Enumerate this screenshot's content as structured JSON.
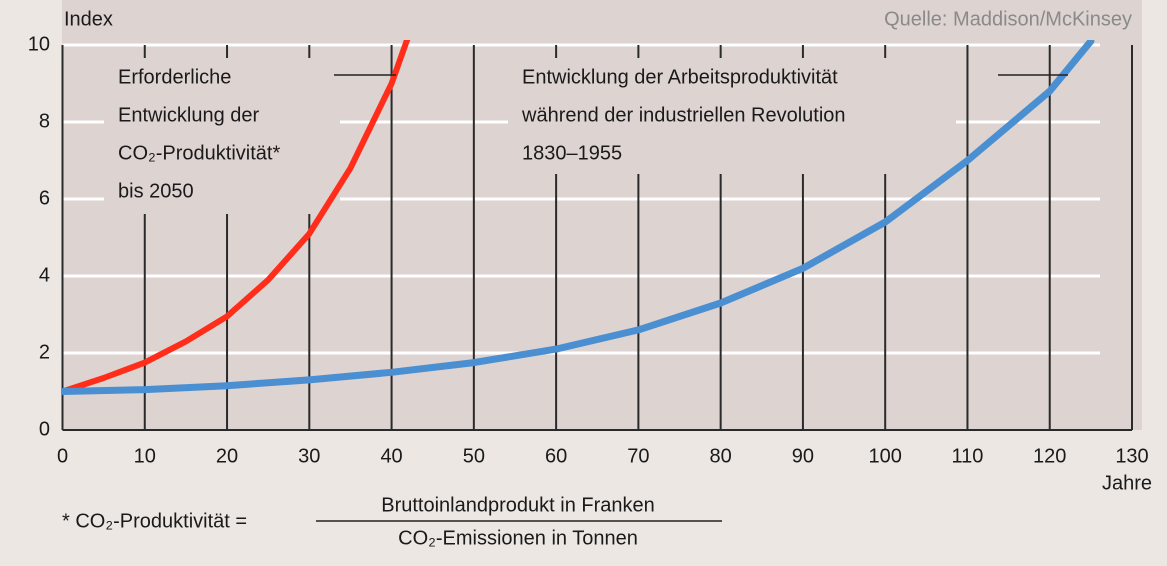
{
  "chart_data": {
    "type": "line",
    "y_label": "Index",
    "x_label": "Jahre",
    "source": "Quelle: Maddison/McKinsey",
    "xlim": [
      0,
      130
    ],
    "ylim": [
      0,
      10
    ],
    "xticks": [
      0,
      10,
      20,
      30,
      40,
      50,
      60,
      70,
      80,
      90,
      100,
      110,
      120,
      130
    ],
    "yticks": [
      0,
      2,
      4,
      6,
      8,
      10
    ],
    "grid": true,
    "series": [
      {
        "color": "#ff2d1a",
        "x": [
          0,
          5,
          10,
          15,
          20,
          25,
          30,
          35,
          40,
          42
        ],
        "values": [
          1,
          1.35,
          1.75,
          2.3,
          2.95,
          3.9,
          5.1,
          6.8,
          9.0,
          10.2
        ]
      },
      {
        "color": "#4a8fd2",
        "x": [
          0,
          10,
          20,
          30,
          40,
          50,
          60,
          70,
          80,
          90,
          100,
          110,
          120,
          125
        ],
        "values": [
          1,
          1.05,
          1.15,
          1.3,
          1.5,
          1.75,
          2.1,
          2.6,
          3.3,
          4.2,
          5.4,
          7.0,
          8.8,
          10.1
        ]
      }
    ],
    "annotations": [
      {
        "lines": [
          "Erforderliche",
          "Entwicklung der",
          "CO₂-Produktivität*",
          "bis 2050"
        ]
      },
      {
        "lines": [
          "Entwicklung der Arbeitsproduktivität",
          "während der industriellen Revolution",
          "1830–1955"
        ]
      }
    ],
    "footnote": {
      "left": "* CO₂-Produktivität =",
      "numerator": "Bruttoinlandprodukt in Franken",
      "denominator": "CO₂-Emissionen in Tonnen"
    }
  }
}
